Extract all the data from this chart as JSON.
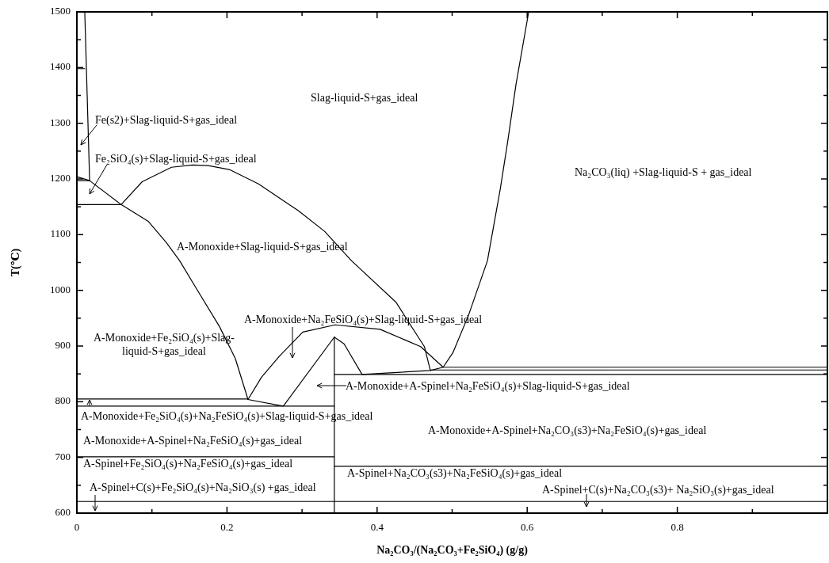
{
  "chart_data": {
    "type": "line",
    "xlabel": "Na₂CO₃/(Na₂CO₃+Fe₂SiO₄)  (g/g)",
    "ylabel": "T(℃)",
    "xlim": [
      0,
      1
    ],
    "ylim": [
      600,
      1500
    ],
    "xticks": [
      0,
      {
        "value": 0.1,
        "label": null
      },
      0.2,
      {
        "value": 0.3,
        "label": null
      },
      0.4,
      {
        "value": 0.5,
        "label": null
      },
      0.6,
      {
        "value": 0.7,
        "label": null
      },
      0.8,
      {
        "value": 0.9,
        "label": null
      }
    ],
    "yticks": [
      600,
      {
        "value": 650,
        "label": null
      },
      700,
      {
        "value": 750,
        "label": null
      },
      800,
      {
        "value": 850,
        "label": null
      },
      900,
      {
        "value": 950,
        "label": null
      },
      1000,
      {
        "value": 1050,
        "label": null
      },
      1100,
      {
        "value": 1150,
        "label": null
      },
      1200,
      {
        "value": 1250,
        "label": null
      },
      1300,
      {
        "value": 1350,
        "label": null
      },
      1400,
      {
        "value": 1450,
        "label": null
      },
      1500
    ],
    "grid": false,
    "series": [
      {
        "color": "#000000",
        "x": [
          0.0105,
          0.017
        ],
        "values": [
          1500,
          1197
        ]
      },
      {
        "color": "#000000",
        "x": [
          0,
          0.0105
        ],
        "values": [
          1398,
          1398
        ]
      },
      {
        "color": "#000000",
        "x": [
          0,
          0.017,
          0.059,
          0.095,
          0.119,
          0.137,
          0.158,
          0.19,
          0.211,
          0.228,
          0.275,
          0.343
        ],
        "values": [
          1204,
          1197,
          1154,
          1124,
          1086,
          1053,
          1006,
          935,
          878,
          804,
          792,
          916
        ]
      },
      {
        "color": "#000000",
        "x": [
          0,
          0.017
        ],
        "values": [
          1197,
          1197
        ]
      },
      {
        "color": "#000000",
        "x": [
          0,
          0.059
        ],
        "values": [
          1154,
          1154
        ]
      },
      {
        "color": "#000000",
        "x": [
          0.059,
          0.087,
          0.126,
          0.154,
          0.175,
          0.203,
          0.242,
          0.295,
          0.33,
          0.366,
          0.425,
          0.463,
          0.471
        ],
        "values": [
          1154,
          1195,
          1221,
          1225,
          1224,
          1217,
          1191,
          1143,
          1106,
          1053,
          979,
          899,
          856
        ]
      },
      {
        "color": "#000000",
        "x": [
          0.602,
          0.585,
          0.574,
          0.564,
          0.547,
          0.522,
          0.501,
          0.488
        ],
        "values": [
          1500,
          1369,
          1267,
          1181,
          1053,
          956,
          888,
          862
        ]
      },
      {
        "color": "#000000",
        "x": [
          0.228,
          0.246,
          0.27,
          0.301,
          0.344,
          0.404,
          0.458,
          0.488
        ],
        "values": [
          804,
          844,
          882,
          925,
          938,
          930,
          899,
          862
        ]
      },
      {
        "color": "#000000",
        "x": [
          0.343,
          0.356,
          0.38,
          0.471,
          0.488,
          1
        ],
        "values": [
          916,
          904,
          849,
          856,
          862,
          862
        ]
      },
      {
        "color": "#000000",
        "x": [
          0.343,
          0.343
        ],
        "values": [
          600,
          916
        ]
      },
      {
        "color": "#000000",
        "x": [
          0,
          0.228
        ],
        "values": [
          805,
          805
        ]
      },
      {
        "color": "#000000",
        "x": [
          0,
          0.343
        ],
        "values": [
          792,
          792
        ]
      },
      {
        "color": "#000000",
        "x": [
          0,
          0.343
        ],
        "values": [
          701,
          701
        ]
      },
      {
        "color": "#000000",
        "x": [
          0.343,
          1
        ],
        "values": [
          684,
          684
        ]
      },
      {
        "color": "#000000",
        "x": [
          0.343,
          1
        ],
        "values": [
          849,
          849
        ]
      },
      {
        "color": "#000000",
        "x": [
          0.471,
          1
        ],
        "values": [
          857,
          857
        ]
      },
      {
        "color": "#000000",
        "x": [
          0,
          1
        ],
        "values": [
          621,
          621
        ]
      }
    ],
    "annotations": [
      "Slag-liquid-S+gas_ideal",
      "Fe(s2)+Slag-liquid-S+gas_ideal",
      "Fe₂SiO₄(s)+Slag-liquid-S+gas_ideal",
      "A-Monoxide+Slag-liquid-S+gas_ideal",
      "Na₂CO₃(liq) +Slag-liquid-S + gas_ideal",
      "A-Monoxide+Na₂FeSiO₄(s)+Slag-liquid-S+gas_ideal",
      "A-Monoxide+Fe₂SiO₄(s)+Slag-\nliquid-S+gas_ideal",
      "A-Monoxide+A-Spinel+Na₂FeSiO₄(s)+Slag-liquid-S+gas_ideal",
      "A-Monoxide+Fe₂SiO₄(s)+Na₂FeSiO₄(s)+Slag-liquid-S+gas_ideal",
      "A-Monoxide+A-Spinel+Na₂FeSiO₄(s)+gas_ideal",
      "A-Monoxide+A-Spinel+Na₂CO₃(s3)+Na₂FeSiO₄(s)+gas_ideal",
      "A-Spinel+Fe₂SiO₄(s)+Na₂FeSiO₄(s)+gas_ideal",
      "A-Spinel+Na₂CO₃(s3)+Na₂FeSiO₄(s)+gas_ideal",
      "A-Spinel+C(s)+Fe₂SiO₄(s)+Na₂SiO₃(s) +gas_ideal",
      "A-Spinel+C(s)+Na₂CO₃(s3)+ Na₂SiO₃(s)+gas_ideal"
    ]
  }
}
